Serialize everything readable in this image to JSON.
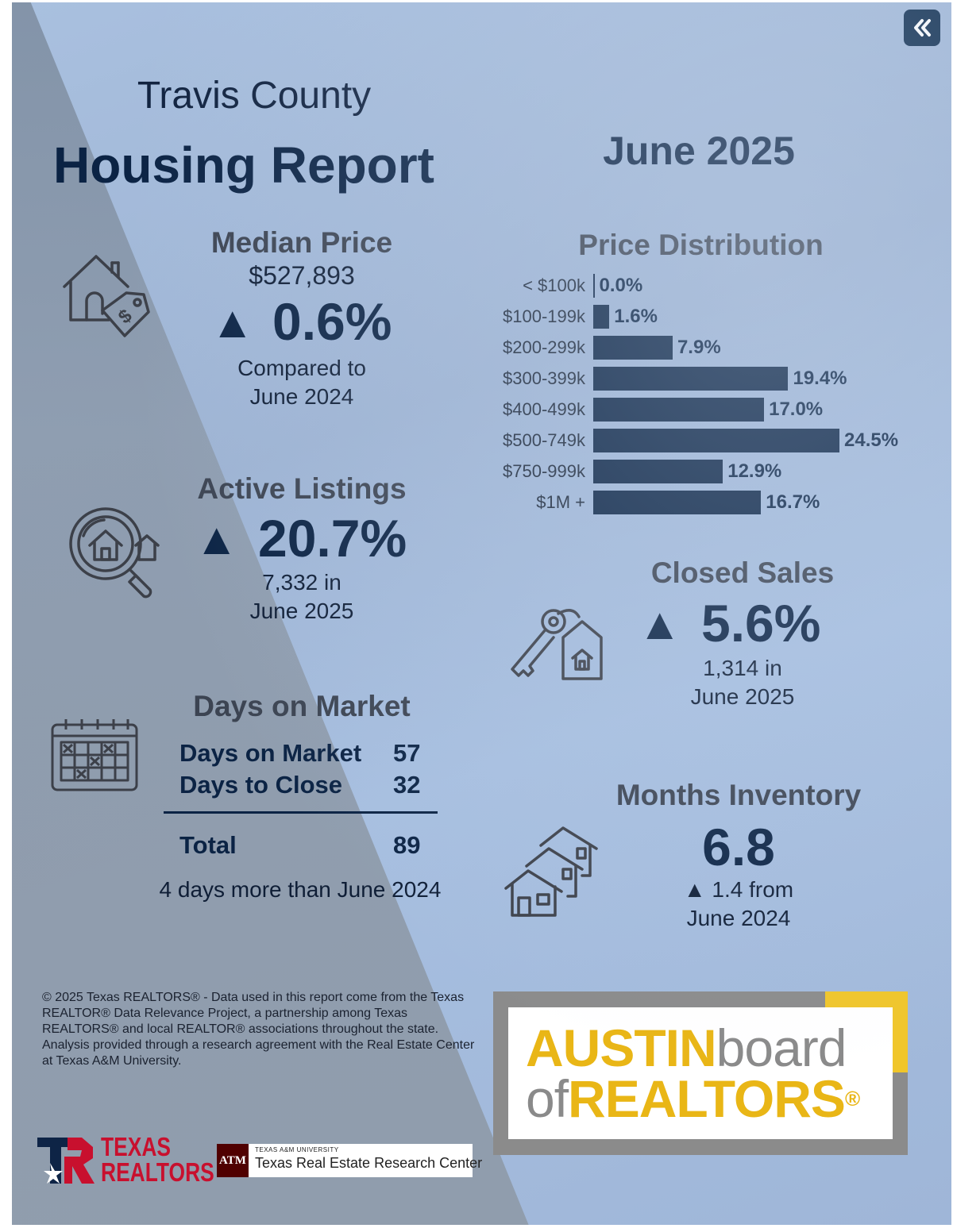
{
  "header": {
    "county": "Travis County",
    "title": "Housing Report",
    "period": "June 2025"
  },
  "median_price": {
    "title": "Median Price",
    "value": "$527,893",
    "arrow": "▲",
    "change": "0.6%",
    "compare_line1": "Compared to",
    "compare_line2": "June 2024",
    "icon": "house-price-tag-icon"
  },
  "active_listings": {
    "title": "Active Listings",
    "arrow": "▲",
    "change": "20.7%",
    "line1": "7,332 in",
    "line2": "June 2025",
    "icon": "magnifier-house-icon"
  },
  "days_on_market": {
    "title": "Days on Market",
    "rows": [
      {
        "label": "Days on Market",
        "value": "57"
      },
      {
        "label": "Days to Close",
        "value": "32"
      }
    ],
    "total_label": "Total",
    "total_value": "89",
    "note": "4 days more than June 2024",
    "icon": "calendar-icon"
  },
  "price_distribution": {
    "title": "Price Distribution",
    "chart_data": {
      "type": "bar",
      "categories": [
        "< $100k",
        "$100-199k",
        "$200-299k",
        "$300-399k",
        "$400-499k",
        "$500-749k",
        "$750-999k",
        "$1M +"
      ],
      "values": [
        0.0,
        1.6,
        7.9,
        19.4,
        17.0,
        24.5,
        12.9,
        16.7
      ],
      "value_labels": [
        "0.0%",
        "1.6%",
        "7.9%",
        "19.4%",
        "17.0%",
        "24.5%",
        "12.9%",
        "16.7%"
      ],
      "title": "Price Distribution",
      "orientation": "horizontal",
      "xlim": [
        0,
        24.5
      ],
      "grid": false,
      "bar_color": "#0c2546"
    }
  },
  "closed_sales": {
    "title": "Closed Sales",
    "arrow": "▲",
    "change": "5.6%",
    "line1": "1,314 in",
    "line2": "June 2025",
    "icon": "key-house-icon"
  },
  "months_inventory": {
    "title": "Months Inventory",
    "value": "6.8",
    "change_line1": "▲ 1.4 from",
    "change_line2": "June 2024",
    "icon": "houses-row-icon"
  },
  "footnote": "© 2025 Texas REALTORS® - Data used in this report come from the Texas REALTOR® Data Relevance Project, a partnership among Texas REALTORS® and local REALTOR® associations throughout the state. Analysis provided through a research agreement with the Real Estate Center at Texas A&M University.",
  "logos": {
    "abor_austin": "AUSTIN",
    "abor_board": "board",
    "abor_of": "of",
    "abor_realtors": "REALTORS",
    "abor_reg": "®",
    "texas_realtors_line1": "TEXAS",
    "texas_realtors_line2": "REALTORS",
    "tamu_small": "TEXAS A&M UNIVERSITY",
    "tamu_center": "Texas Real Estate Research Center",
    "tamu_mark": "ATM"
  },
  "controls": {
    "collapse_icon": "double-chevron-left-icon"
  },
  "colors": {
    "navy": "#0b2344",
    "gold": "#e9b616",
    "grey": "#8a8a8a",
    "texas_red": "#c8102e",
    "aggie_maroon": "#500000"
  }
}
